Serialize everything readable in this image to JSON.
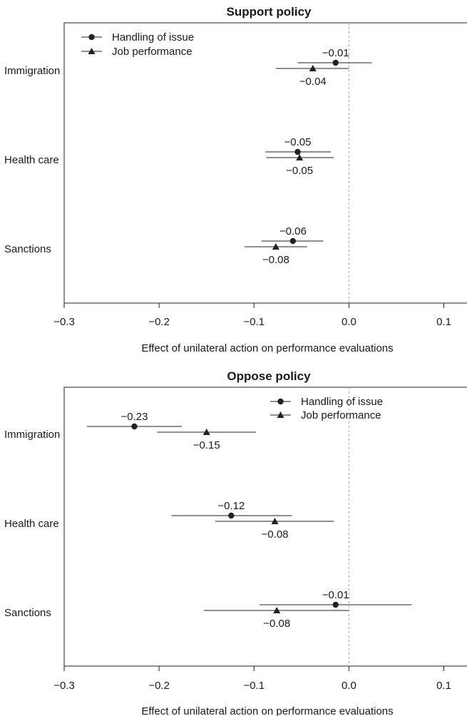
{
  "chart_data": [
    {
      "type": "scatter",
      "title": "Support policy",
      "xlabel": "Effect of unilateral action on performance evaluations",
      "ylabel": "",
      "xlim": [
        -0.3,
        0.1
      ],
      "xticks": [
        -0.3,
        -0.2,
        -0.1,
        0.0,
        0.1
      ],
      "xtick_labels": [
        "−0.3",
        "−0.2",
        "−0.1",
        "0.0",
        "0.1"
      ],
      "reference_line": 0.0,
      "categories": [
        "Immigration",
        "Health care",
        "Sanctions"
      ],
      "legend": {
        "position": "top-left",
        "entries": [
          "Handling of issue",
          "Job performance"
        ]
      },
      "series": [
        {
          "name": "Handling of issue",
          "marker": "circle",
          "values": [
            -0.014,
            -0.054,
            -0.059
          ],
          "ci_low": [
            -0.054,
            -0.088,
            -0.092
          ],
          "ci_high": [
            0.024,
            -0.019,
            -0.027
          ],
          "labels": [
            "−0.01",
            "−0.05",
            "−0.06"
          ]
        },
        {
          "name": "Job performance",
          "marker": "triangle",
          "values": [
            -0.038,
            -0.052,
            -0.077
          ],
          "ci_low": [
            -0.077,
            -0.087,
            -0.11
          ],
          "ci_high": [
            0.0,
            -0.016,
            -0.044
          ],
          "labels": [
            "−0.04",
            "−0.05",
            "−0.08"
          ]
        }
      ]
    },
    {
      "type": "scatter",
      "title": "Oppose policy",
      "xlabel": "Effect of unilateral action on performance evaluations",
      "ylabel": "",
      "xlim": [
        -0.3,
        0.1
      ],
      "xticks": [
        -0.3,
        -0.2,
        -0.1,
        0.0,
        0.1
      ],
      "xtick_labels": [
        "−0.3",
        "−0.2",
        "−0.1",
        "0.0",
        "0.1"
      ],
      "reference_line": 0.0,
      "categories": [
        "Immigration",
        "Health care",
        "Sanctions"
      ],
      "legend": {
        "position": "top-center",
        "entries": [
          "Handling of issue",
          "Job performance"
        ]
      },
      "series": [
        {
          "name": "Handling of issue",
          "marker": "circle",
          "values": [
            -0.226,
            -0.124,
            -0.014
          ],
          "ci_low": [
            -0.276,
            -0.187,
            -0.094
          ],
          "ci_high": [
            -0.176,
            -0.06,
            0.066
          ],
          "labels": [
            "−0.23",
            "−0.12",
            "−0.01"
          ]
        },
        {
          "name": "Job performance",
          "marker": "triangle",
          "values": [
            -0.15,
            -0.078,
            -0.076
          ],
          "ci_low": [
            -0.202,
            -0.141,
            -0.153
          ],
          "ci_high": [
            -0.098,
            -0.016,
            0.0
          ],
          "labels": [
            "−0.15",
            "−0.08",
            "−0.08"
          ]
        }
      ]
    }
  ]
}
